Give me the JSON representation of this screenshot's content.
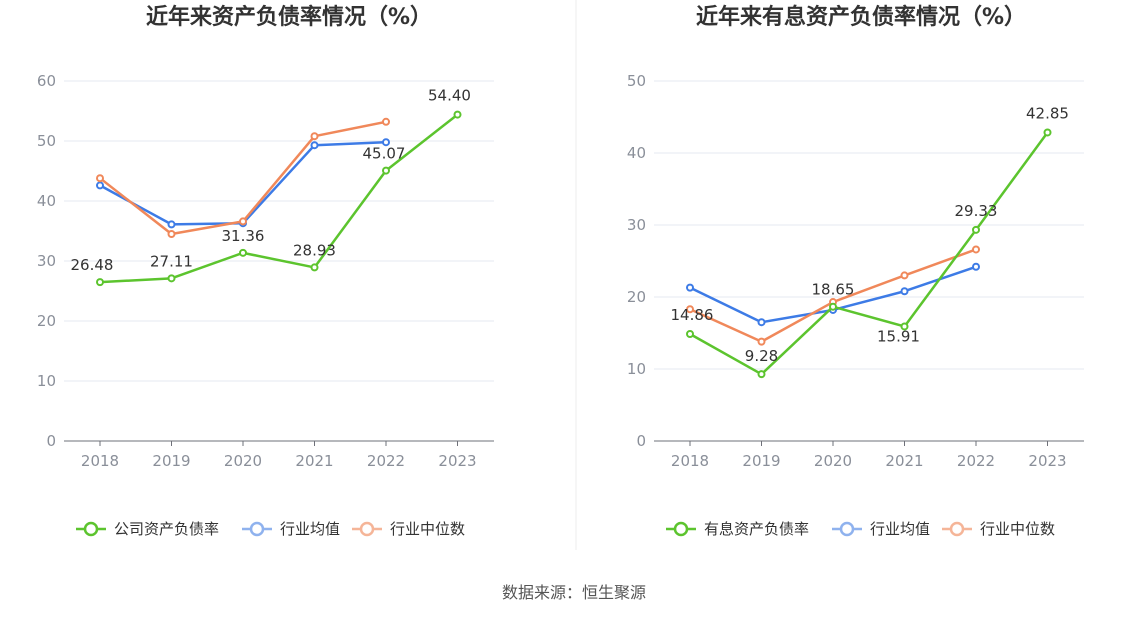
{
  "source_text": "数据来源：恒生聚源",
  "chart_data": [
    {
      "type": "line",
      "title": "近年来资产负债率情况（%）",
      "categories": [
        "2018",
        "2019",
        "2020",
        "2021",
        "2022",
        "2023"
      ],
      "ylim": [
        0,
        60
      ],
      "yticks": [
        0,
        10,
        20,
        30,
        40,
        50,
        60
      ],
      "grid": true,
      "legend_position": "bottom",
      "series": [
        {
          "name": "公司资产负债率",
          "color": "#5cc42e",
          "labeled": true,
          "values": [
            26.48,
            27.11,
            31.36,
            28.93,
            45.07,
            54.4
          ],
          "labels": [
            "26.48",
            "27.11",
            "31.36",
            "28.93",
            "45.07",
            "54.40"
          ]
        },
        {
          "name": "行业均值",
          "color": "#3d7be6",
          "labeled": false,
          "values": [
            42.6,
            36.1,
            36.3,
            49.3,
            49.8,
            null
          ]
        },
        {
          "name": "行业中位数",
          "color": "#f0885a",
          "labeled": false,
          "values": [
            43.8,
            34.5,
            36.6,
            50.8,
            53.2,
            null
          ]
        }
      ]
    },
    {
      "type": "line",
      "title": "近年来有息资产负债率情况（%）",
      "categories": [
        "2018",
        "2019",
        "2020",
        "2021",
        "2022",
        "2023"
      ],
      "ylim": [
        0,
        50
      ],
      "yticks": [
        0,
        10,
        20,
        30,
        40,
        50
      ],
      "grid": true,
      "legend_position": "bottom",
      "series": [
        {
          "name": "有息资产负债率",
          "color": "#5cc42e",
          "labeled": true,
          "values": [
            14.86,
            9.28,
            18.65,
            15.91,
            29.33,
            42.85
          ],
          "labels": [
            "14.86",
            "9.28",
            "18.65",
            "15.91",
            "29.33",
            "42.85"
          ]
        },
        {
          "name": "行业均值",
          "color": "#3d7be6",
          "labeled": false,
          "values": [
            21.3,
            16.5,
            18.2,
            20.8,
            24.2,
            null
          ]
        },
        {
          "name": "行业中位数",
          "color": "#f0885a",
          "labeled": false,
          "values": [
            18.3,
            13.8,
            19.3,
            23.0,
            26.6,
            null
          ]
        }
      ]
    }
  ]
}
